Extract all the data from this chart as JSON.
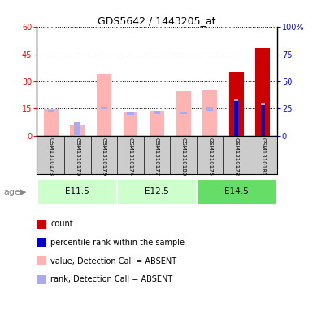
{
  "title": "GDS5642 / 1443205_at",
  "samples": [
    "GSM1310173",
    "GSM1310176",
    "GSM1310179",
    "GSM1310174",
    "GSM1310177",
    "GSM1310180",
    "GSM1310175",
    "GSM1310178",
    "GSM1310181"
  ],
  "age_groups": [
    {
      "label": "E11.5",
      "start": 0,
      "end": 3
    },
    {
      "label": "E12.5",
      "start": 3,
      "end": 6
    },
    {
      "label": "E14.5",
      "start": 6,
      "end": 9
    }
  ],
  "left_ylim": [
    0,
    60
  ],
  "left_yticks": [
    0,
    15,
    30,
    45,
    60
  ],
  "right_ylim": [
    0,
    100
  ],
  "right_yticks": [
    0,
    25,
    50,
    75,
    100
  ],
  "value_absent": [
    14.8,
    5.5,
    34.0,
    13.2,
    13.6,
    24.5,
    25.2,
    0,
    0
  ],
  "rank_absent_cap": [
    14.3,
    0,
    16.0,
    13.2,
    13.7,
    13.5,
    15.5,
    0,
    0
  ],
  "rank_absent_standalone": [
    0,
    7.5,
    0,
    0,
    0,
    0,
    0,
    0,
    0
  ],
  "count": [
    0,
    0,
    0,
    0,
    0,
    0,
    0,
    35.5,
    48.5
  ],
  "percentile": [
    0,
    0,
    0,
    0,
    0,
    0,
    0,
    20.0,
    18.0
  ],
  "rank_absent_on_count": [
    0,
    0,
    0,
    0,
    0,
    0,
    0,
    20.5,
    18.5
  ],
  "color_value_absent": "#ffb3b3",
  "color_rank_absent": "#aaaaee",
  "color_count": "#cc0000",
  "color_percentile": "#0000cc",
  "color_bg": "#ffffff",
  "color_sample_bg": "#cccccc",
  "color_age_light": "#ccffcc",
  "color_age_dark": "#66dd66",
  "bar_width": 0.55
}
